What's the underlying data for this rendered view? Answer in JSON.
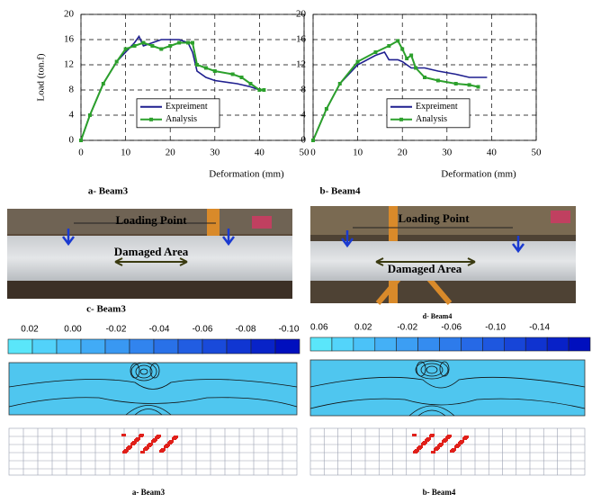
{
  "chart_data": [
    {
      "type": "line",
      "title": "a- Beam3",
      "xlabel": "Deformation (mm)",
      "ylabel": "Load (ton.f)",
      "xlim": [
        0,
        50
      ],
      "ylim": [
        0,
        20
      ],
      "xticks": [
        0,
        10,
        20,
        30,
        40,
        50
      ],
      "yticks": [
        0,
        4,
        8,
        12,
        16,
        20
      ],
      "grid": true,
      "legend": "lower center",
      "series": [
        {
          "name": "Expreiment",
          "color": "#1f1f8f",
          "marker": false,
          "x": [
            0,
            2,
            5,
            8,
            10,
            12,
            13,
            14,
            16,
            18,
            22,
            24,
            25,
            26,
            28,
            30,
            35,
            38,
            40,
            41
          ],
          "values": [
            0,
            4,
            9,
            12.5,
            14,
            15.5,
            16.5,
            15,
            15.5,
            16,
            16,
            15.5,
            14,
            11,
            10,
            9.5,
            9,
            8.5,
            8,
            8
          ]
        },
        {
          "name": "Analysis",
          "color": "#2ca02c",
          "marker": true,
          "x": [
            0,
            2,
            5,
            8,
            10,
            12,
            14,
            16,
            18,
            20,
            22,
            24,
            25,
            26,
            28,
            30,
            34,
            36,
            38,
            40,
            41
          ],
          "values": [
            0,
            4,
            9,
            12.5,
            14.5,
            15,
            15.5,
            15,
            14.5,
            15,
            15.5,
            15.5,
            15.5,
            12,
            11.5,
            11,
            10.5,
            10,
            9,
            8,
            8
          ]
        }
      ]
    },
    {
      "type": "line",
      "title": "b- Beam4",
      "xlabel": "Deformation (mm)",
      "xlim": [
        0,
        50
      ],
      "ylim": [
        0,
        20
      ],
      "xticks": [
        0,
        10,
        20,
        30,
        40,
        50
      ],
      "yticks": [
        0,
        4,
        8,
        12,
        16,
        20
      ],
      "grid": true,
      "legend": "lower center",
      "series": [
        {
          "name": "Expreiment",
          "color": "#1f1f8f",
          "marker": false,
          "x": [
            0,
            3,
            6,
            10,
            14,
            16,
            17,
            19,
            20,
            22,
            25,
            28,
            32,
            35,
            39
          ],
          "values": [
            0,
            5,
            9,
            12,
            13.5,
            14,
            12.8,
            12.8,
            12.5,
            11.5,
            11.5,
            11,
            10.5,
            10,
            10
          ]
        },
        {
          "name": "Analysis",
          "color": "#2ca02c",
          "marker": true,
          "x": [
            0,
            3,
            6,
            10,
            14,
            17,
            19,
            20,
            21,
            22,
            23,
            25,
            28,
            32,
            35,
            37
          ],
          "values": [
            0,
            5,
            9,
            12.5,
            14,
            15,
            15.8,
            14.5,
            13,
            13.5,
            11.5,
            10,
            9.5,
            9,
            8.8,
            8.5
          ]
        }
      ]
    }
  ],
  "photos": [
    {
      "caption": "c- Beam3",
      "loading_point": "Loading Point",
      "damaged_area": "Damaged Area"
    },
    {
      "caption": "d- Beam4",
      "loading_point": "Loading Point",
      "damaged_area": "Damaged Area"
    }
  ],
  "colorbars": [
    {
      "lim": [
        0.03,
        -0.105
      ],
      "ticks": [
        0.02,
        {
          "value": 0,
          "label": "0.00"
        },
        -0.02,
        -0.04,
        -0.06,
        -0.08,
        {
          "value": -0.1,
          "label": "-0.10"
        }
      ]
    },
    {
      "lim": [
        0.068,
        -0.186
      ],
      "ticks": [
        0.06,
        0.02,
        -0.02,
        -0.06,
        {
          "value": -0.1,
          "label": "-0.10"
        },
        -0.14
      ]
    }
  ],
  "mesh_captions": [
    "a- Beam3",
    "b- Beam4"
  ]
}
